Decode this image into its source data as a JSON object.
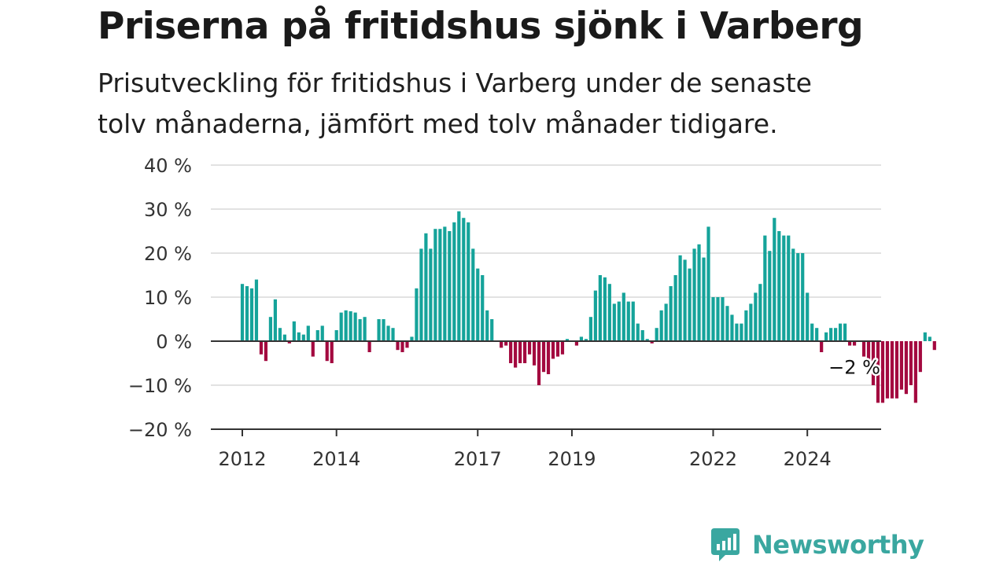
{
  "title": "Priserna på fritidshus sjönk i Varberg",
  "subtitle_lines": [
    "Prisutveckling för fritidshus i Varberg under de senaste",
    "tolv månaderna, jämfört med tolv månader tidigare."
  ],
  "brand": "Newsworthy",
  "colors": {
    "positive": "#15a39a",
    "negative": "#a3093f",
    "grid": "#d9d9d9",
    "axis": "#333333",
    "brand": "#3aa7a0"
  },
  "chart_data": {
    "type": "bar",
    "y_unit": "%",
    "ylim": [
      -20,
      40
    ],
    "y_ticks": [
      -20,
      -10,
      0,
      10,
      20,
      30,
      40
    ],
    "y_tick_labels": [
      "−20 %",
      "−10 %",
      "0 %",
      "10 %",
      "20 %",
      "30 %",
      "40 %"
    ],
    "x_tick_labels": [
      {
        "label": "2012",
        "index": 0
      },
      {
        "label": "2014",
        "index": 20
      },
      {
        "label": "2017",
        "index": 50
      },
      {
        "label": "2019",
        "index": 70
      },
      {
        "label": "2022",
        "index": 100
      },
      {
        "label": "2024",
        "index": 120
      }
    ],
    "grid": true,
    "annotation": {
      "text": "−2 %",
      "index": 128
    },
    "values": [
      13,
      12.5,
      12,
      14,
      -3,
      -4.5,
      5.5,
      9.5,
      3,
      1.5,
      -0.5,
      4.5,
      2,
      1.5,
      3.5,
      -3.5,
      2.5,
      3.5,
      -4.5,
      -5,
      2.5,
      6.5,
      7,
      6.8,
      6.5,
      5,
      5.5,
      -2.5,
      0,
      5,
      5,
      3.5,
      3,
      -2,
      -2.5,
      -1.5,
      1,
      12,
      21,
      24.5,
      21,
      25.5,
      25.5,
      26,
      25,
      27,
      29.5,
      28,
      27,
      21,
      16.5,
      15,
      7,
      5,
      0,
      -1.5,
      -1,
      -5,
      -6,
      -5,
      -5,
      -3,
      -5.5,
      -10,
      -7,
      -7.5,
      -4,
      -3.5,
      -3,
      0.5,
      0,
      -1,
      1,
      0.5,
      5.5,
      11.5,
      15,
      14.5,
      13,
      8.5,
      9,
      11,
      9,
      9,
      4,
      2.5,
      0.5,
      -0.5,
      3,
      7,
      8.5,
      12.5,
      15,
      19.5,
      18.5,
      16.5,
      21,
      22,
      19,
      26,
      10,
      10,
      10,
      8,
      6,
      4,
      4,
      7,
      8.5,
      11,
      13,
      24,
      20.5,
      28,
      25,
      24,
      24,
      21,
      20,
      20,
      11,
      4,
      3,
      -2.5,
      2,
      3,
      3,
      4,
      4,
      -1,
      -1,
      0,
      -3.5,
      -7,
      -10,
      -14,
      -14,
      -13,
      -13,
      -13,
      -11,
      -12,
      -10,
      -14,
      -7,
      2,
      1,
      -2
    ]
  }
}
